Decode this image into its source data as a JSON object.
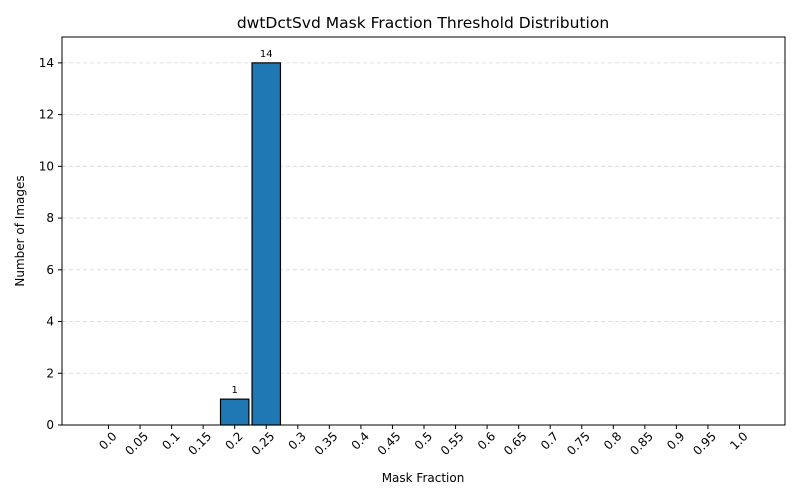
{
  "chart_data": {
    "type": "bar",
    "title": "dwtDctSvd Mask Fraction Threshold Distribution",
    "xlabel": "Mask Fraction",
    "ylabel": "Number of Images",
    "categories": [
      "0.0",
      "0.05",
      "0.1",
      "0.15",
      "0.2",
      "0.25",
      "0.3",
      "0.35",
      "0.4",
      "0.45",
      "0.5",
      "0.55",
      "0.6",
      "0.65",
      "0.7",
      "0.75",
      "0.8",
      "0.85",
      "0.9",
      "0.95",
      "1.0"
    ],
    "values": [
      0,
      0,
      0,
      0,
      1,
      14,
      0,
      0,
      0,
      0,
      0,
      0,
      0,
      0,
      0,
      0,
      0,
      0,
      0,
      0,
      0
    ],
    "data_labels": [
      "",
      "",
      "",
      "",
      "1",
      "14",
      "",
      "",
      "",
      "",
      "",
      "",
      "",
      "",
      "",
      "",
      "",
      "",
      "",
      "",
      ""
    ],
    "ylim": [
      0,
      15
    ],
    "yticks": [
      0,
      2,
      4,
      6,
      8,
      10,
      12,
      14
    ],
    "grid": "y-dashed",
    "bar_color": "#1f77b4",
    "edge_color": "#000000"
  }
}
